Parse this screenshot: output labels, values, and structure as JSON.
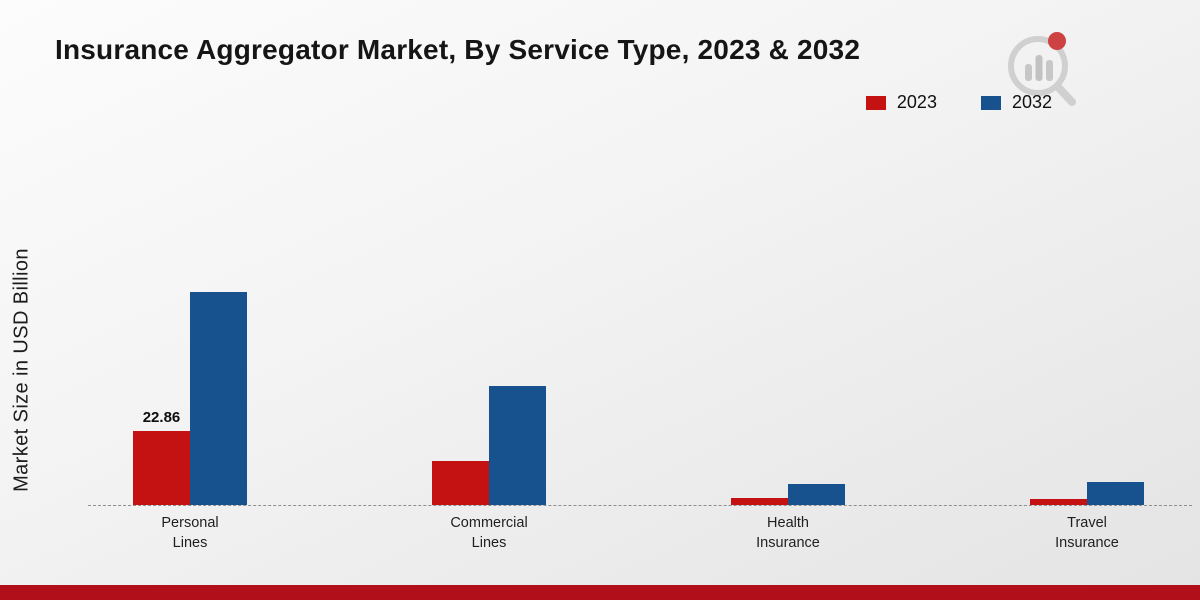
{
  "title": "Insurance Aggregator Market, By Service Type, 2023 & 2032",
  "ylabel": "Market Size in USD Billion",
  "colors": {
    "series_2023": "#c41212",
    "series_2032": "#17518e",
    "bottom_band": "#b1101a",
    "baseline": "#8f8f8f"
  },
  "logo": {
    "name": "market-research-logo"
  },
  "chart_data": {
    "type": "bar",
    "title": "Insurance Aggregator Market, By Service Type, 2023 & 2032",
    "ylabel": "Market Size in USD Billion",
    "categories": [
      "Personal Lines",
      "Commercial Lines",
      "Health Insurance",
      "Travel Insurance"
    ],
    "series": [
      {
        "name": "2023",
        "color": "#c41212",
        "values": [
          22.86,
          13.5,
          2.2,
          1.9
        ],
        "bar_labels": [
          "22.86",
          "",
          "",
          ""
        ]
      },
      {
        "name": "2032",
        "color": "#17518e",
        "values": [
          66,
          37,
          6.6,
          7.2
        ],
        "bar_labels": [
          "",
          "",
          "",
          ""
        ]
      }
    ],
    "ylim": [
      0,
      110
    ],
    "grid": false,
    "baseline_style": "dashed",
    "legend_position": "top-right"
  }
}
